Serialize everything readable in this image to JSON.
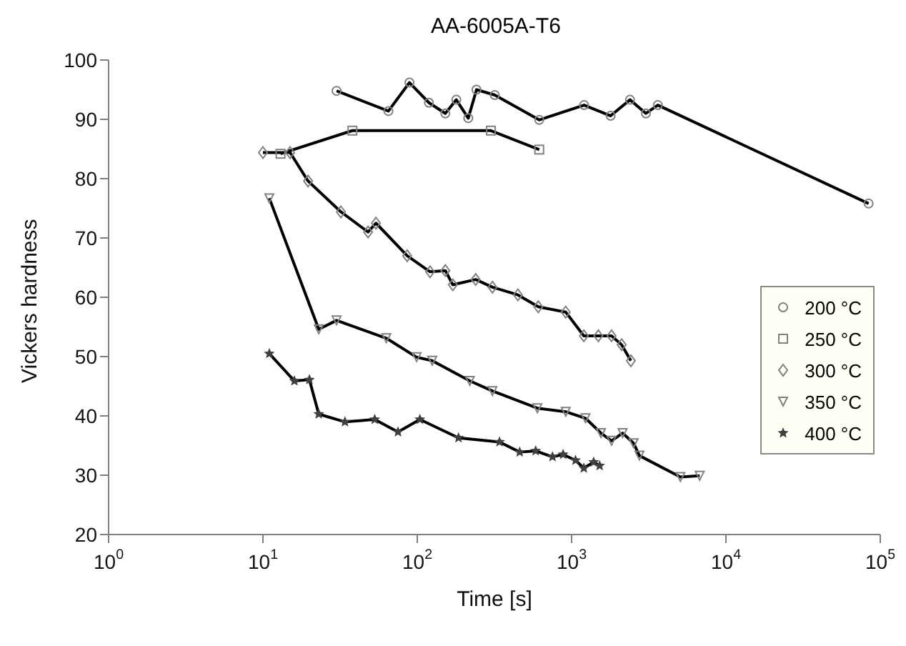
{
  "chart_data": {
    "type": "line",
    "title": "AA-6005A-T6",
    "xlabel": "Time [s]",
    "ylabel": "Vickers hardness",
    "log": "x",
    "xlim": [
      1,
      100000
    ],
    "ylim": [
      20,
      100
    ],
    "xticks": [
      {
        "value": 1,
        "label": "10$^{0}$"
      },
      {
        "value": 10,
        "label": "10$^{1}$"
      },
      {
        "value": 100,
        "label": "10$^{2}$"
      },
      {
        "value": 1000,
        "label": "10$^{3}$"
      },
      {
        "value": 10000,
        "label": "10$^{4}$"
      },
      {
        "value": 100000,
        "label": "10$^{5}$"
      }
    ],
    "yticks": [
      20,
      30,
      40,
      50,
      60,
      70,
      80,
      90,
      100
    ],
    "grid": false,
    "legend": "right",
    "line_style": "solid",
    "series": [
      {
        "name": "200 °C",
        "color": "#000000",
        "marker": "circle",
        "x": [
          30,
          65,
          89,
          119,
          152,
          179,
          214,
          242,
          318,
          617,
          1205,
          1790,
          2390,
          3030,
          3620,
          84000
        ],
        "values": [
          94.8,
          91.4,
          96.2,
          92.8,
          91.0,
          93.3,
          90.2,
          95.0,
          94.1,
          89.9,
          92.4,
          90.6,
          93.3,
          91.0,
          92.4,
          75.8
        ]
      },
      {
        "name": "250 °C",
        "color": "#000000",
        "marker": "square",
        "x": [
          13,
          38,
          300,
          617
        ],
        "values": [
          84.2,
          88.1,
          88.1,
          84.9
        ]
      },
      {
        "name": "300 °C",
        "color": "#000000",
        "marker": "diamond",
        "x": [
          10,
          15,
          19.6,
          32,
          48,
          54,
          86,
          121,
          152,
          170,
          239,
          307,
          449,
          608,
          916,
          1200,
          1490,
          1815,
          2110,
          2420
        ],
        "values": [
          84.4,
          84.4,
          79.6,
          74.4,
          71.0,
          72.5,
          67.0,
          64.3,
          64.5,
          62.1,
          63.0,
          61.7,
          60.4,
          58.4,
          57.5,
          53.5,
          53.5,
          53.5,
          52.0,
          49.3
        ]
      },
      {
        "name": "350 °C",
        "color": "#000000",
        "marker": "triangle",
        "x": [
          11,
          23,
          30,
          63,
          99,
          125,
          219,
          307,
          600,
          916,
          1230,
          1550,
          1815,
          2140,
          2520,
          2750,
          5070,
          6760
        ],
        "values": [
          76.7,
          54.6,
          56.1,
          53.1,
          49.9,
          49.3,
          45.9,
          44.2,
          41.3,
          40.7,
          39.6,
          37.1,
          35.8,
          37.1,
          35.4,
          33.3,
          29.7,
          29.9
        ]
      },
      {
        "name": "400 °C",
        "color": "#000000",
        "marker": "star",
        "x": [
          11,
          16,
          20,
          23,
          34,
          53,
          75,
          104,
          185,
          341,
          461,
          585,
          752,
          881,
          1060,
          1200,
          1390,
          1520
        ],
        "values": [
          50.5,
          45.9,
          46.1,
          40.3,
          39.0,
          39.4,
          37.3,
          39.4,
          36.3,
          35.6,
          33.9,
          34.1,
          33.1,
          33.5,
          32.5,
          31.2,
          32.2,
          31.6
        ]
      }
    ]
  }
}
